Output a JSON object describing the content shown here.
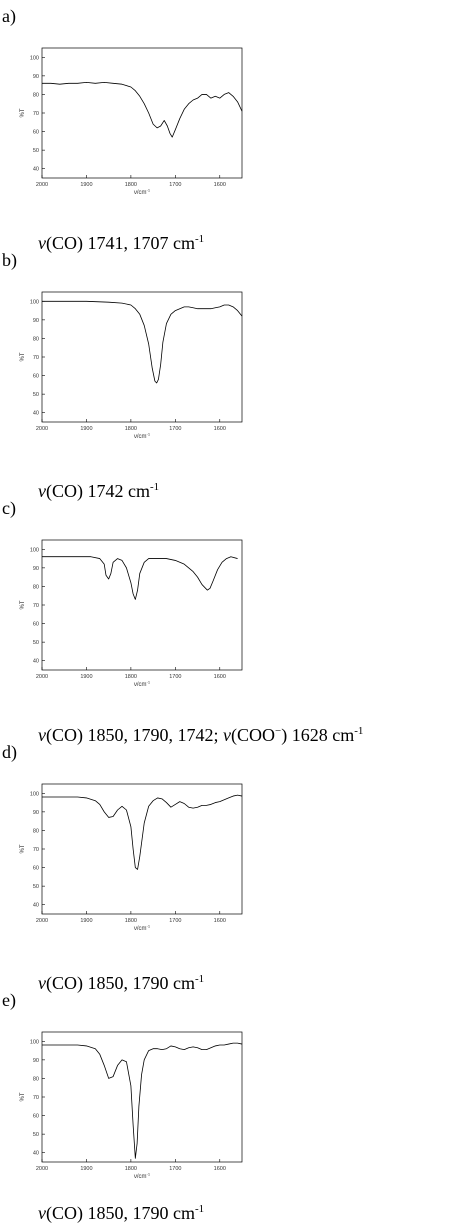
{
  "panels": [
    {
      "letter": "a)",
      "caption": {
        "nu": "ν",
        "text": "(CO) 1741, 1707 cm",
        "sup": "-1"
      },
      "chart_data": {
        "type": "line",
        "x_ticks": [
          2000,
          1900,
          1800,
          1700,
          1600
        ],
        "y_ticks": [
          40,
          50,
          60,
          70,
          80,
          90,
          100
        ],
        "ylabel": "%T",
        "xlabel": "ν/cm",
        "xlabel_sup": "-1",
        "xlim": [
          2000,
          1550
        ],
        "ylim": [
          35,
          105
        ],
        "series": [
          {
            "color": "#000000",
            "x": [
              2000,
              1980,
              1960,
              1940,
              1920,
              1900,
              1880,
              1860,
              1840,
              1820,
              1800,
              1790,
              1780,
              1770,
              1760,
              1750,
              1741,
              1733,
              1725,
              1718,
              1712,
              1707,
              1700,
              1690,
              1680,
              1670,
              1660,
              1650,
              1640,
              1630,
              1620,
              1610,
              1600,
              1590,
              1580,
              1570,
              1560,
              1550
            ],
            "y": [
              86,
              86,
              85.5,
              86,
              86,
              86.5,
              86,
              86.5,
              86,
              85.5,
              84,
              82,
              79,
              75,
              70,
              64,
              62,
              63,
              66,
              63,
              59,
              57,
              61,
              67,
              72,
              75,
              77,
              78,
              80,
              80,
              78,
              79,
              78,
              80,
              81,
              79,
              76,
              71
            ]
          }
        ]
      }
    },
    {
      "letter": "b)",
      "caption": {
        "nu": "ν",
        "text": "(CO) 1742 cm",
        "sup": "-1"
      },
      "chart_data": {
        "type": "line",
        "x_ticks": [
          2000,
          1900,
          1800,
          1700,
          1600
        ],
        "y_ticks": [
          40,
          50,
          60,
          70,
          80,
          90,
          100
        ],
        "ylabel": "%T",
        "xlabel": "ν/cm",
        "xlabel_sup": "-1",
        "xlim": [
          2000,
          1550
        ],
        "ylim": [
          35,
          105
        ],
        "series": [
          {
            "color": "#000000",
            "x": [
              2000,
              1950,
              1900,
              1850,
              1820,
              1800,
              1790,
              1780,
              1770,
              1760,
              1752,
              1746,
              1742,
              1738,
              1733,
              1728,
              1720,
              1710,
              1700,
              1690,
              1680,
              1670,
              1660,
              1650,
              1640,
              1630,
              1620,
              1610,
              1600,
              1590,
              1580,
              1570,
              1560,
              1550
            ],
            "y": [
              100,
              100,
              100,
              99.5,
              99,
              98,
              96,
              93,
              87,
              77,
              64,
              57,
              56,
              58,
              66,
              78,
              88,
              93,
              95,
              96,
              97,
              97,
              96.5,
              96,
              96,
              96,
              96,
              96.5,
              97,
              98,
              98,
              97,
              95,
              92
            ]
          }
        ]
      }
    },
    {
      "letter": "c)",
      "caption": {
        "nu": "ν",
        "text": "(CO) 1850, 1790, 1742;",
        "nu2": "ν",
        "text2": "(COO",
        "sup2": "−",
        "text3": ") 1628 cm",
        "sup": "-1"
      },
      "chart_data": {
        "type": "line",
        "x_ticks": [
          2000,
          1900,
          1800,
          1700,
          1600
        ],
        "y_ticks": [
          40,
          50,
          60,
          70,
          80,
          90,
          100
        ],
        "ylabel": "%T",
        "xlabel": "ν/cm",
        "xlabel_sup": "-1",
        "xlim": [
          2000,
          1550
        ],
        "ylim": [
          35,
          105
        ],
        "series": [
          {
            "color": "#000000",
            "x": [
              2000,
              1960,
              1920,
              1890,
              1870,
              1860,
              1856,
              1850,
              1845,
              1840,
              1830,
              1820,
              1810,
              1800,
              1795,
              1790,
              1785,
              1780,
              1770,
              1760,
              1750,
              1740,
              1730,
              1720,
              1700,
              1680,
              1660,
              1650,
              1640,
              1630,
              1628,
              1622,
              1615,
              1605,
              1595,
              1585,
              1575,
              1560
            ],
            "y": [
              96,
              96,
              96,
              96,
              95,
              92,
              86,
              84,
              87,
              93,
              95,
              94,
              90,
              82,
              76,
              73,
              78,
              87,
              93,
              95,
              95,
              95,
              95,
              95,
              94,
              92,
              88,
              85,
              81,
              78.5,
              78,
              79,
              83,
              89,
              93,
              95,
              96,
              95
            ]
          }
        ]
      }
    },
    {
      "letter": "d)",
      "caption": {
        "nu": "ν",
        "text": "(CO) 1850, 1790 cm",
        "sup": "-1"
      },
      "chart_data": {
        "type": "line",
        "x_ticks": [
          2000,
          1900,
          1800,
          1700,
          1600
        ],
        "y_ticks": [
          40,
          50,
          60,
          70,
          80,
          90,
          100
        ],
        "ylabel": "%T",
        "xlabel": "ν/cm",
        "xlabel_sup": "-1",
        "xlim": [
          2000,
          1550
        ],
        "ylim": [
          35,
          105
        ],
        "series": [
          {
            "color": "#000000",
            "x": [
              2000,
              1960,
              1920,
              1900,
              1880,
              1870,
              1860,
              1850,
              1840,
              1830,
              1820,
              1810,
              1800,
              1795,
              1790,
              1785,
              1780,
              1770,
              1760,
              1750,
              1740,
              1730,
              1720,
              1710,
              1700,
              1690,
              1680,
              1670,
              1660,
              1650,
              1640,
              1630,
              1620,
              1610,
              1600,
              1590,
              1580,
              1570,
              1560,
              1550
            ],
            "y": [
              98,
              98,
              98,
              97.5,
              96,
              94,
              90,
              87,
              87.5,
              91,
              93,
              91,
              82,
              70,
              60,
              59,
              66,
              84,
              93,
              96,
              97.5,
              97,
              95,
              92.5,
              94,
              95.5,
              94.5,
              92.5,
              92,
              92.5,
              93.5,
              93.5,
              94,
              95,
              95.5,
              96.5,
              97.5,
              98.5,
              99,
              98.5
            ]
          }
        ]
      }
    },
    {
      "letter": "e)",
      "caption": {
        "nu": "ν",
        "text": "(CO) 1850, 1790 cm",
        "sup": "-1"
      },
      "chart_data": {
        "type": "line",
        "x_ticks": [
          2000,
          1900,
          1800,
          1700,
          1600
        ],
        "y_ticks": [
          40,
          50,
          60,
          70,
          80,
          90,
          100
        ],
        "ylabel": "%T",
        "xlabel": "ν/cm",
        "xlabel_sup": "-1",
        "xlim": [
          2000,
          1550
        ],
        "ylim": [
          35,
          105
        ],
        "series": [
          {
            "color": "#000000",
            "x": [
              2000,
              1960,
              1920,
              1900,
              1880,
              1870,
              1860,
              1850,
              1840,
              1830,
              1820,
              1810,
              1800,
              1795,
              1790,
              1786,
              1782,
              1776,
              1770,
              1760,
              1750,
              1740,
              1730,
              1720,
              1710,
              1700,
              1690,
              1680,
              1670,
              1660,
              1650,
              1640,
              1630,
              1620,
              1610,
              1600,
              1590,
              1580,
              1570,
              1560,
              1550
            ],
            "y": [
              98,
              98,
              98,
              97.5,
              96,
              93,
              87,
              80,
              81,
              87,
              90,
              89,
              76,
              55,
              37,
              45,
              65,
              82,
              90,
              95,
              96,
              96,
              95.5,
              96,
              97.5,
              97,
              96,
              95.5,
              96.5,
              97,
              96.5,
              95.5,
              95.5,
              96.5,
              97.5,
              98,
              98,
              98.5,
              99,
              99,
              98.5
            ]
          }
        ]
      }
    }
  ]
}
